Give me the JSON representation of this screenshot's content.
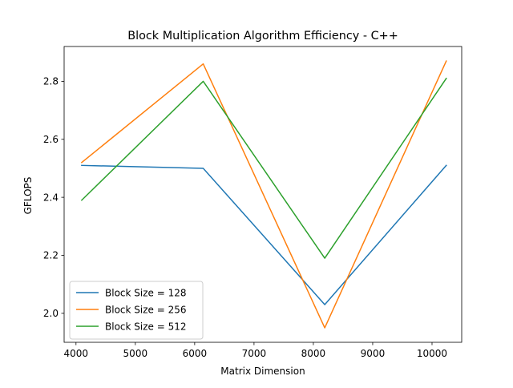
{
  "chart_data": {
    "type": "line",
    "title": "Block Multiplication Algorithm Efficiency - C++",
    "xlabel": "Matrix Dimension",
    "ylabel": "GFLOPS",
    "xlim": [
      3800,
      10500
    ],
    "ylim": [
      1.9,
      2.92
    ],
    "x_ticks": [
      4000,
      5000,
      6000,
      7000,
      8000,
      9000,
      10000
    ],
    "y_ticks": [
      2.0,
      2.2,
      2.4,
      2.6,
      2.8
    ],
    "x_tick_labels": [
      "4000",
      "5000",
      "6000",
      "7000",
      "8000",
      "9000",
      "10000"
    ],
    "y_tick_labels": [
      "2.0",
      "2.2",
      "2.4",
      "2.6",
      "2.8"
    ],
    "grid": false,
    "legend_position": "lower-left",
    "x": [
      4096,
      6144,
      8192,
      10240
    ],
    "series": [
      {
        "name": "Block Size = 128",
        "color": "#1f77b4",
        "values": [
          2.51,
          2.5,
          2.03,
          2.51
        ]
      },
      {
        "name": "Block Size = 256",
        "color": "#ff7f0e",
        "values": [
          2.52,
          2.86,
          1.95,
          2.87
        ]
      },
      {
        "name": "Block Size = 512",
        "color": "#2ca02c",
        "values": [
          2.39,
          2.8,
          2.19,
          2.81
        ]
      }
    ]
  }
}
